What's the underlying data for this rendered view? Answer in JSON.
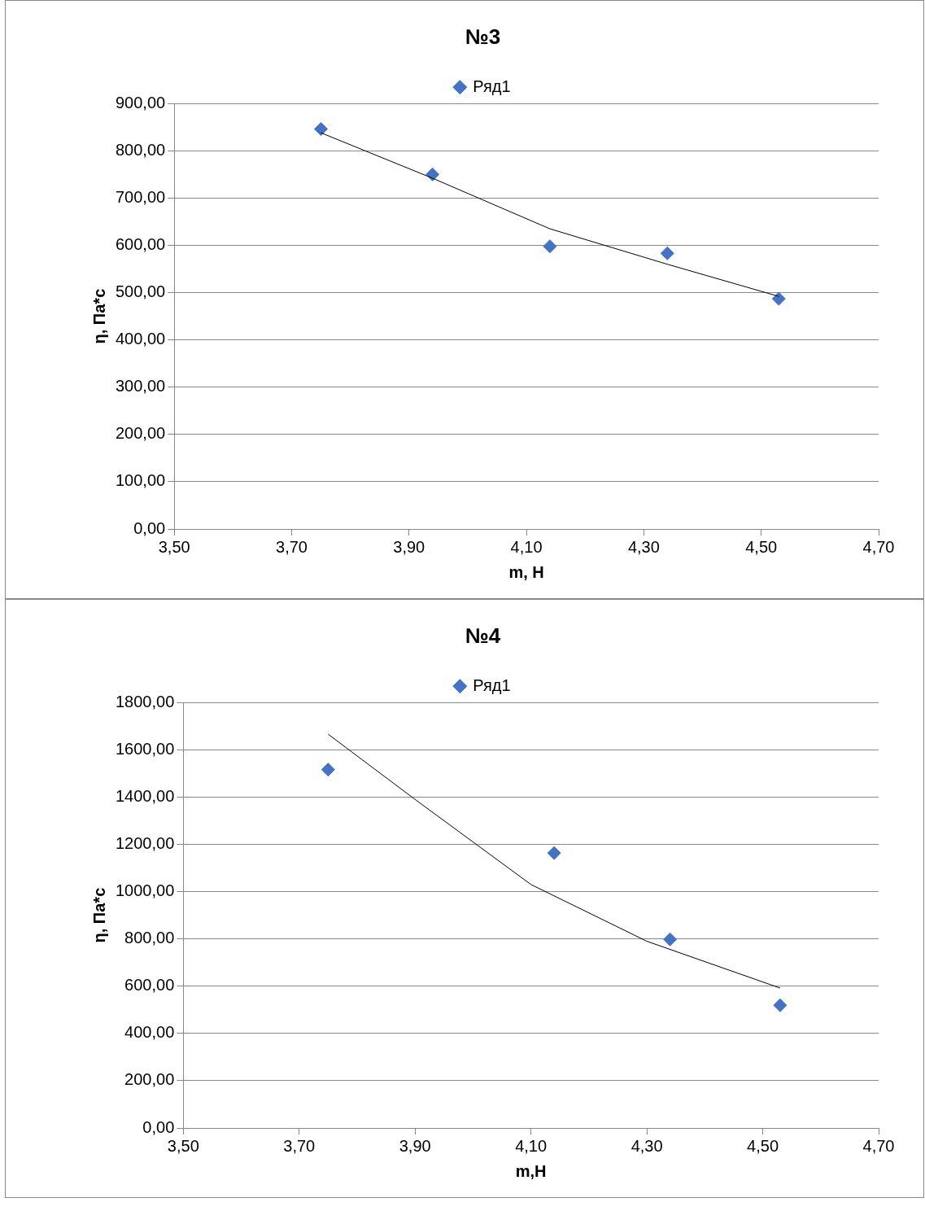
{
  "chart_data": [
    {
      "type": "scatter",
      "title": "№3",
      "xlabel": "m, Н",
      "ylabel": "η, Па*с",
      "legend": "top",
      "grid": "y",
      "xlim": [
        3.5,
        4.7
      ],
      "xticks": [
        {
          "value": 3.5,
          "label": "3,50"
        },
        {
          "value": 3.7,
          "label": "3,70"
        },
        {
          "value": 3.9,
          "label": "3,90"
        },
        {
          "value": 4.1,
          "label": "4,10"
        },
        {
          "value": 4.3,
          "label": "4,30"
        },
        {
          "value": 4.5,
          "label": "4,50"
        },
        {
          "value": 4.7,
          "label": "4,70"
        }
      ],
      "ylim": [
        0,
        900
      ],
      "yticks": [
        {
          "value": 0,
          "label": "0,00"
        },
        {
          "value": 100,
          "label": "100,00"
        },
        {
          "value": 200,
          "label": "200,00"
        },
        {
          "value": 300,
          "label": "300,00"
        },
        {
          "value": 400,
          "label": "400,00"
        },
        {
          "value": 500,
          "label": "500,00"
        },
        {
          "value": 600,
          "label": "600,00"
        },
        {
          "value": 700,
          "label": "700,00"
        },
        {
          "value": 800,
          "label": "800,00"
        },
        {
          "value": 900,
          "label": "900,00"
        }
      ],
      "series": [
        {
          "name": "Ряд1",
          "type": "scatter",
          "marker": "diamond",
          "color": "#4472c4",
          "x": [
            3.75,
            3.94,
            4.14,
            4.34,
            4.53
          ],
          "values": [
            846,
            750,
            598,
            583,
            487
          ]
        },
        {
          "type": "line",
          "marker": "none",
          "color": "#000000",
          "x": [
            3.75,
            3.94,
            4.14,
            4.34,
            4.53
          ],
          "values": [
            838,
            742,
            635,
            560,
            492
          ]
        }
      ]
    },
    {
      "type": "scatter",
      "title": "№4",
      "xlabel": "m,Н",
      "ylabel": "η, Па*с",
      "legend": "top",
      "grid": "y",
      "xlim": [
        3.5,
        4.7
      ],
      "xticks": [
        {
          "value": 3.5,
          "label": "3,50"
        },
        {
          "value": 3.7,
          "label": "3,70"
        },
        {
          "value": 3.9,
          "label": "3,90"
        },
        {
          "value": 4.1,
          "label": "4,10"
        },
        {
          "value": 4.3,
          "label": "4,30"
        },
        {
          "value": 4.5,
          "label": "4,50"
        },
        {
          "value": 4.7,
          "label": "4,70"
        }
      ],
      "ylim": [
        0,
        1800
      ],
      "yticks": [
        {
          "value": 0,
          "label": "0,00"
        },
        {
          "value": 200,
          "label": "200,00"
        },
        {
          "value": 400,
          "label": "400,00"
        },
        {
          "value": 600,
          "label": "600,00"
        },
        {
          "value": 800,
          "label": "800,00"
        },
        {
          "value": 1000,
          "label": "1000,00"
        },
        {
          "value": 1200,
          "label": "1200,00"
        },
        {
          "value": 1400,
          "label": "1400,00"
        },
        {
          "value": 1600,
          "label": "1600,00"
        },
        {
          "value": 1800,
          "label": "1800,00"
        }
      ],
      "series": [
        {
          "name": "Ряд1",
          "type": "scatter",
          "marker": "diamond",
          "color": "#4472c4",
          "x": [
            3.75,
            4.14,
            4.34,
            4.53
          ],
          "values": [
            1516,
            1163,
            798,
            519
          ]
        },
        {
          "type": "line",
          "marker": "none",
          "color": "#000000",
          "x": [
            3.75,
            3.9,
            4.1,
            4.3,
            4.53
          ],
          "values": [
            1666,
            1390,
            1030,
            790,
            592
          ]
        }
      ]
    }
  ]
}
